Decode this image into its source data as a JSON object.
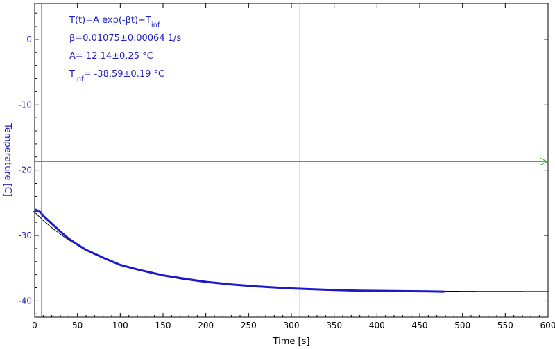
{
  "chart_data": {
    "type": "line",
    "xlabel": "Time [s]",
    "ylabel": "Temperature [C]",
    "xlim": [
      0,
      600
    ],
    "ylim": [
      -42.5,
      5.5
    ],
    "x_ticks": [
      0,
      50,
      100,
      150,
      200,
      250,
      300,
      350,
      400,
      450,
      500,
      550,
      600
    ],
    "y_ticks": [
      0,
      -10,
      -20,
      -30,
      -40
    ],
    "grid": false,
    "colors": {
      "data": "#1a1acc",
      "fit": "#000000",
      "green_marker": "#2ca02c",
      "red_marker": "#c0282a",
      "text": "#1f1fbf",
      "axis": "#000000"
    },
    "fit": {
      "A": 12.14,
      "beta": 0.01075,
      "T_inf": -38.59,
      "x_range": [
        -2,
        600
      ]
    },
    "markers": {
      "green_vertical_x": 8,
      "red_vertical_x": 310,
      "green_horizontal_y": -18.7
    },
    "series": [
      {
        "x": [
          0,
          3,
          6,
          10,
          15,
          20,
          30,
          40,
          50,
          60,
          80,
          100,
          120,
          150,
          180,
          200,
          230,
          260,
          300,
          340,
          380,
          420,
          460,
          478
        ],
        "values": [
          -26.3,
          -26.2,
          -26.3,
          -27.0,
          -27.6,
          -28.2,
          -29.4,
          -30.5,
          -31.4,
          -32.2,
          -33.4,
          -34.5,
          -35.2,
          -36.1,
          -36.7,
          -37.1,
          -37.5,
          -37.8,
          -38.1,
          -38.3,
          -38.45,
          -38.5,
          -38.55,
          -38.6
        ]
      }
    ],
    "annotations": {
      "line1": {
        "main": "T(t)=A exp(-βt)+T",
        "sub": "inf"
      },
      "line2": "β=0.01075±0.00064 1/s",
      "line3": "A= 12.14±0.25 °C",
      "line4": {
        "pre": "T",
        "sub": "inf",
        "post": "= -38.59±0.19 °C"
      }
    }
  }
}
